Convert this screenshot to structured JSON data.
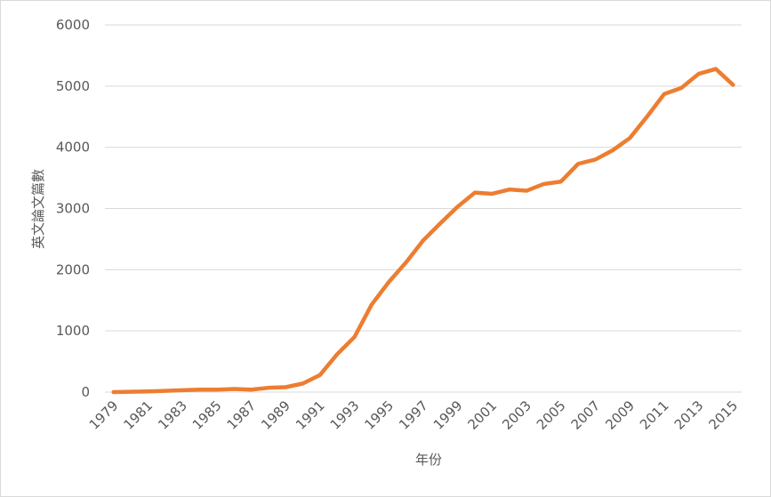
{
  "chart_data": {
    "type": "line",
    "x_label": "年份",
    "y_label": "英文論文篇數",
    "x": [
      1979,
      1980,
      1981,
      1982,
      1983,
      1984,
      1985,
      1986,
      1987,
      1988,
      1989,
      1990,
      1991,
      1992,
      1993,
      1994,
      1995,
      1996,
      1997,
      1998,
      1999,
      2000,
      2001,
      2002,
      2003,
      2004,
      2005,
      2006,
      2007,
      2008,
      2009,
      2010,
      2011,
      2012,
      2013,
      2014,
      2015
    ],
    "series": [
      {
        "color": "#ed7d31",
        "values": [
          0,
          5,
          10,
          20,
          30,
          40,
          40,
          50,
          40,
          70,
          80,
          140,
          280,
          620,
          900,
          1430,
          1800,
          2120,
          2480,
          2760,
          3030,
          3260,
          3240,
          3310,
          3290,
          3400,
          3440,
          3730,
          3800,
          3950,
          4150,
          4500,
          4870,
          4970,
          5200,
          5280,
          5020
        ]
      }
    ],
    "xlim": [
      1978.5,
      2015.5
    ],
    "xticks": [
      1979,
      1981,
      1983,
      1985,
      1987,
      1989,
      1991,
      1993,
      1995,
      1997,
      1999,
      2001,
      2003,
      2005,
      2007,
      2009,
      2011,
      2013,
      2015
    ],
    "ylim": [
      0,
      6000
    ],
    "yticks": [
      0,
      1000,
      2000,
      3000,
      4000,
      5000,
      6000
    ],
    "grid": true
  }
}
